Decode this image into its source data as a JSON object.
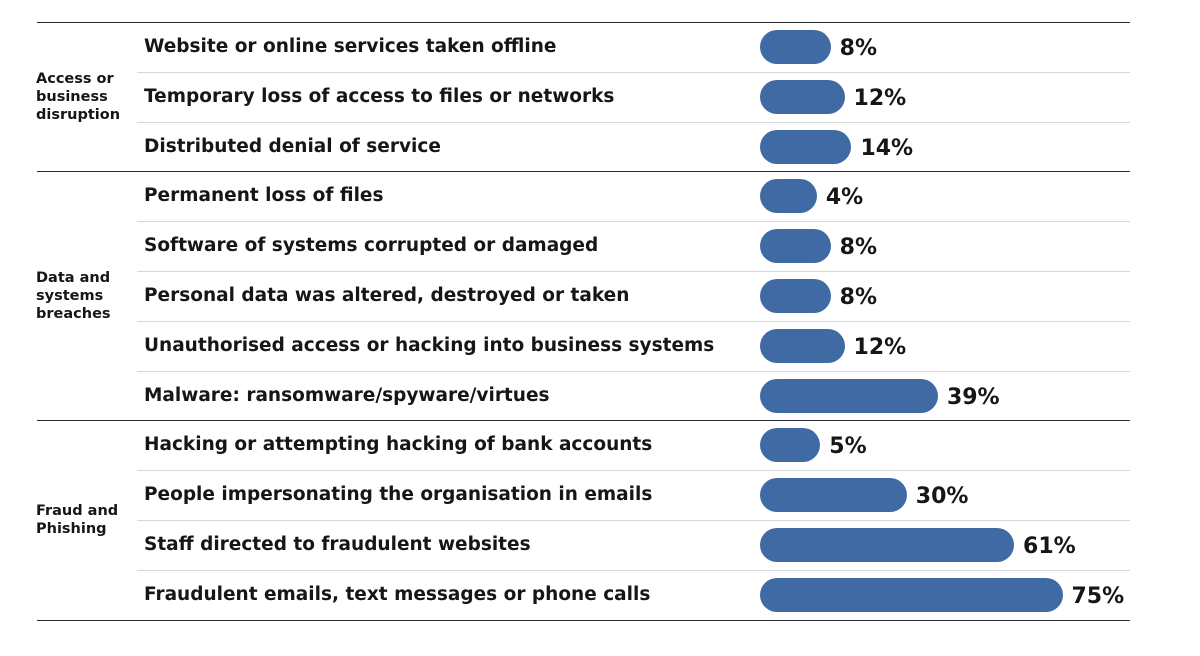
{
  "colors": {
    "bar": "#3f6aa3",
    "text": "#161616",
    "rule_major": "#2a2a2a",
    "rule_minor": "#d7d7d7",
    "background": "#ffffff"
  },
  "chart_data": {
    "type": "bar",
    "orientation": "horizontal",
    "title": "",
    "xlabel": "",
    "ylabel": "",
    "value_format": "percent",
    "xlim": [
      0,
      75
    ],
    "grid": false,
    "legend": "none",
    "groups": [
      {
        "label": "Access or business disruption",
        "items": [
          {
            "label": "Website or online services taken offline",
            "value": 8,
            "display": "8%"
          },
          {
            "label": "Temporary loss of access to files or networks",
            "value": 12,
            "display": "12%"
          },
          {
            "label": "Distributed denial of service",
            "value": 14,
            "display": "14%"
          }
        ]
      },
      {
        "label": "Data and systems breaches",
        "items": [
          {
            "label": "Permanent loss of files",
            "value": 4,
            "display": "4%"
          },
          {
            "label": "Software of systems corrupted or damaged",
            "value": 8,
            "display": "8%"
          },
          {
            "label": "Personal data was altered, destroyed or taken",
            "value": 8,
            "display": "8%"
          },
          {
            "label": "Unauthorised access or hacking into business systems",
            "value": 12,
            "display": "12%"
          },
          {
            "label": "Malware: ransomware/spyware/virtues",
            "value": 39,
            "display": "39%"
          }
        ]
      },
      {
        "label": "Fraud and Phishing",
        "items": [
          {
            "label": "Hacking or attempting hacking of bank accounts",
            "value": 5,
            "display": "5%"
          },
          {
            "label": "People impersonating the organisation in emails",
            "value": 30,
            "display": "30%"
          },
          {
            "label": "Staff directed to fraudulent websites",
            "value": 61,
            "display": "61%"
          },
          {
            "label": "Fraudulent  emails, text messages or phone calls",
            "value": 75,
            "display": "75%"
          }
        ]
      }
    ]
  }
}
